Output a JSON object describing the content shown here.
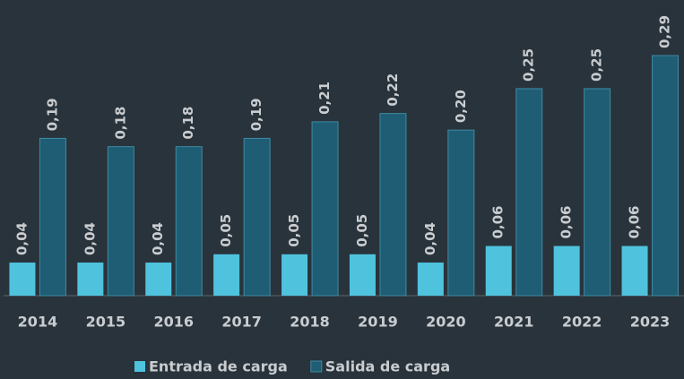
{
  "chart_data": {
    "type": "bar",
    "categories": [
      "2014",
      "2015",
      "2016",
      "2017",
      "2018",
      "2019",
      "2020",
      "2021",
      "2022",
      "2023"
    ],
    "series": [
      {
        "name": "Entrada de carga",
        "color": "#4fc3de",
        "values": [
          0.04,
          0.04,
          0.04,
          0.05,
          0.05,
          0.05,
          0.04,
          0.06,
          0.06,
          0.06
        ],
        "value_labels": [
          "0,04",
          "0,04",
          "0,04",
          "0,05",
          "0,05",
          "0,05",
          "0,04",
          "0,06",
          "0,06",
          "0,06"
        ]
      },
      {
        "name": "Salida de carga",
        "color": "#1e5d74",
        "values": [
          0.19,
          0.18,
          0.18,
          0.19,
          0.21,
          0.22,
          0.2,
          0.25,
          0.25,
          0.29
        ],
        "value_labels": [
          "0,19",
          "0,18",
          "0,18",
          "0,19",
          "0,21",
          "0,22",
          "0,20",
          "0,25",
          "0,25",
          "0,29"
        ]
      }
    ]
  }
}
